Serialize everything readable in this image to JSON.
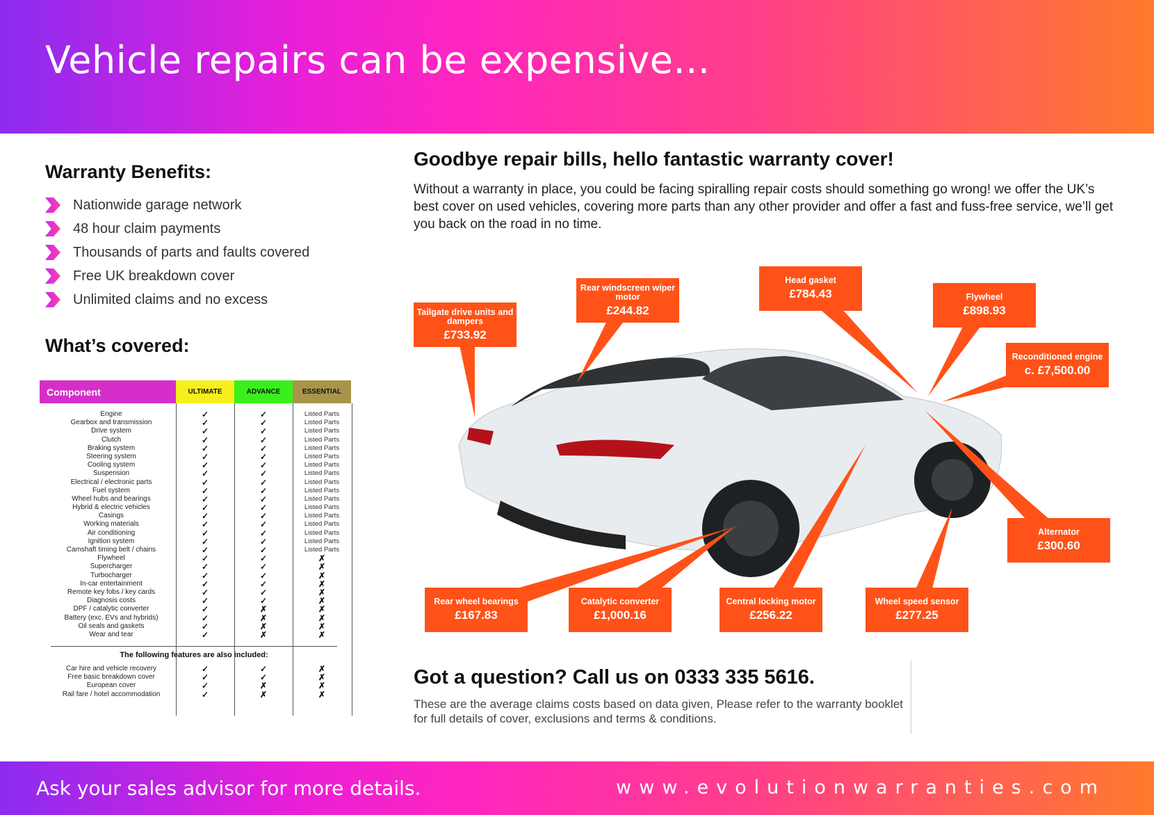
{
  "header": {
    "title": "Vehicle repairs can be expensive..."
  },
  "benefits": {
    "heading": "Warranty Benefits:",
    "items": [
      "Nationwide garage network",
      "48 hour claim payments",
      "Thousands of parts and faults covered",
      "Free UK breakdown cover",
      "Unlimited claims and no excess"
    ]
  },
  "covered": {
    "heading": "What’s covered:",
    "columns": [
      "Component",
      "ULTIMATE",
      "ADVANCE",
      "ESSENTIAL"
    ],
    "column_colors": [
      "#d62fc9",
      "#f5f01c",
      "#39f01c",
      "#a8944a"
    ],
    "rows": [
      [
        "Engine",
        "✓",
        "✓",
        "Listed Parts"
      ],
      [
        "Gearbox and transmission",
        "✓",
        "✓",
        "Listed Parts"
      ],
      [
        "Drive system",
        "✓",
        "✓",
        "Listed Parts"
      ],
      [
        "Clutch",
        "✓",
        "✓",
        "Listed Parts"
      ],
      [
        "Braking system",
        "✓",
        "✓",
        "Listed Parts"
      ],
      [
        "Steering system",
        "✓",
        "✓",
        "Listed Parts"
      ],
      [
        "Cooling system",
        "✓",
        "✓",
        "Listed Parts"
      ],
      [
        "Suspension",
        "✓",
        "✓",
        "Listed Parts"
      ],
      [
        "Electrical / electronic parts",
        "✓",
        "✓",
        "Listed Parts"
      ],
      [
        "Fuel system",
        "✓",
        "✓",
        "Listed Parts"
      ],
      [
        "Wheel hubs and bearings",
        "✓",
        "✓",
        "Listed Parts"
      ],
      [
        "Hybrid & electric vehicles",
        "✓",
        "✓",
        "Listed Parts"
      ],
      [
        "Casings",
        "✓",
        "✓",
        "Listed Parts"
      ],
      [
        "Working materials",
        "✓",
        "✓",
        "Listed Parts"
      ],
      [
        "Air conditioning",
        "✓",
        "✓",
        "Listed Parts"
      ],
      [
        "Ignition system",
        "✓",
        "✓",
        "Listed Parts"
      ],
      [
        "Camshaft timing belt / chains",
        "✓",
        "✓",
        "Listed Parts"
      ],
      [
        "Flywheel",
        "✓",
        "✓",
        "✗"
      ],
      [
        "Supercharger",
        "✓",
        "✓",
        "✗"
      ],
      [
        "Turbocharger",
        "✓",
        "✓",
        "✗"
      ],
      [
        "In-car entertainment",
        "✓",
        "✓",
        "✗"
      ],
      [
        "Remote key fobs / key cards",
        "✓",
        "✓",
        "✗"
      ],
      [
        "Diagnosis costs",
        "✓",
        "✓",
        "✗"
      ],
      [
        "DPF / catalytic converter",
        "✓",
        "✗",
        "✗"
      ],
      [
        "Battery (exc. EVs and hybrids)",
        "✓",
        "✗",
        "✗"
      ],
      [
        "Oil seals and gaskets",
        "✓",
        "✗",
        "✗"
      ],
      [
        "Wear and tear",
        "✓",
        "✗",
        "✗"
      ]
    ],
    "also_heading": "The following features are also included:",
    "also_rows": [
      [
        "Car hire and vehicle recovery",
        "✓",
        "✓",
        "✗"
      ],
      [
        "Free basic breakdown cover",
        "✓",
        "✓",
        "✗"
      ],
      [
        "European cover",
        "✓",
        "✗",
        "✗"
      ],
      [
        "Rail fare / hotel accommodation",
        "✓",
        "✗",
        "✗"
      ]
    ]
  },
  "main": {
    "heading": "Goodbye repair bills, hello fantastic warranty cover!",
    "intro": "Without a warranty in place, you could be facing spiralling repair costs should something go wrong! we offer the UK’s best cover on used vehicles, covering more parts than any other provider and offer a fast and fuss-free service, we’ll get you back on the road in no time."
  },
  "callouts": [
    {
      "label": "Tailgate drive units and dampers",
      "price": "£733.92"
    },
    {
      "label": "Rear windscreen wiper motor",
      "price": "£244.82"
    },
    {
      "label": "Head gasket",
      "price": "£784.43"
    },
    {
      "label": "Flywheel",
      "price": "£898.93"
    },
    {
      "label": "Reconditioned engine",
      "price": "c. £7,500.00"
    },
    {
      "label": "Alternator",
      "price": "£300.60"
    },
    {
      "label": "Rear wheel bearings",
      "price": "£167.83"
    },
    {
      "label": "Catalytic converter",
      "price": "£1,000.16"
    },
    {
      "label": "Central locking motor",
      "price": "£256.22"
    },
    {
      "label": "Wheel speed sensor",
      "price": "£277.25"
    }
  ],
  "accent": "#ff5218",
  "contact": {
    "question": "Got a question? Call us on 0333 335 5616.",
    "note": "These are the average claims costs based on data given, Please refer to the warranty booklet for full details of cover, exclusions and terms & conditions."
  },
  "footer": {
    "left": "Ask your sales advisor for more details.",
    "right": "www.evolutionwarranties.com"
  }
}
